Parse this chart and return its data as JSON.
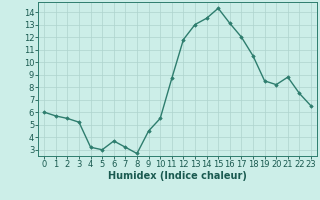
{
  "x": [
    0,
    1,
    2,
    3,
    4,
    5,
    6,
    7,
    8,
    9,
    10,
    11,
    12,
    13,
    14,
    15,
    16,
    17,
    18,
    19,
    20,
    21,
    22,
    23
  ],
  "y": [
    6.0,
    5.7,
    5.5,
    5.2,
    3.2,
    3.0,
    3.7,
    3.2,
    2.7,
    4.5,
    5.5,
    8.7,
    11.8,
    13.0,
    13.5,
    14.3,
    13.1,
    12.0,
    10.5,
    8.5,
    8.2,
    8.8,
    7.5,
    6.5
  ],
  "line_color": "#2e7d6e",
  "marker": "D",
  "marker_size": 1.8,
  "bg_color": "#cceee8",
  "grid_color": "#aed4ce",
  "xlabel": "Humidex (Indice chaleur)",
  "ylim": [
    2.5,
    14.8
  ],
  "xlim": [
    -0.5,
    23.5
  ],
  "yticks": [
    3,
    4,
    5,
    6,
    7,
    8,
    9,
    10,
    11,
    12,
    13,
    14
  ],
  "xticks": [
    0,
    1,
    2,
    3,
    4,
    5,
    6,
    7,
    8,
    9,
    10,
    11,
    12,
    13,
    14,
    15,
    16,
    17,
    18,
    19,
    20,
    21,
    22,
    23
  ],
  "title_color": "#1a5a50",
  "axis_color": "#2e7d6e",
  "xlabel_fontsize": 7.0,
  "tick_fontsize": 6.0,
  "line_width": 1.0
}
